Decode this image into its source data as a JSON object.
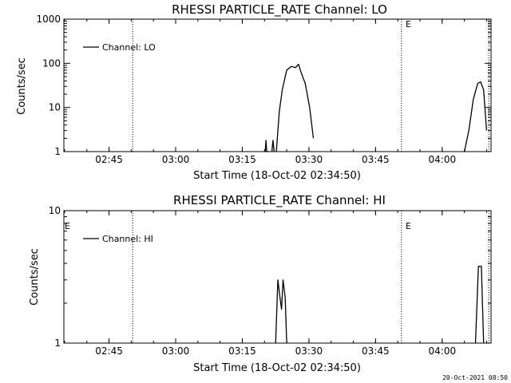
{
  "footer": {
    "timestamp": "20-Oct-2021 08:50"
  },
  "chart_data": [
    {
      "type": "line",
      "title": "RHESSI PARTICLE_RATE Channel: LO",
      "xlabel": "Start Time (18-Oct-02 02:34:50)",
      "ylabel": "Counts/sec",
      "yscale": "log",
      "ylim": [
        1,
        1000
      ],
      "xlim": [
        "02:34:50",
        "04:11:00"
      ],
      "x_ticks": [
        "02:45",
        "03:00",
        "03:15",
        "03:30",
        "03:45",
        "04:00"
      ],
      "y_ticks": [
        "1",
        "10",
        "100",
        "1000"
      ],
      "legend": "Channel: LO",
      "legend_position": "top-left",
      "marker_label": "E",
      "markers": [
        {
          "time": "02:50:20",
          "label": ""
        },
        {
          "time": "03:50:50",
          "label": "E"
        },
        {
          "time": "04:10:30",
          "label": ""
        }
      ],
      "series": [
        {
          "name": "Channel: LO",
          "segments": [
            {
              "x": [
                "03:20:10",
                "03:20:20",
                "03:20:30",
                "03:20:45",
                "03:21:00"
              ],
              "y": [
                1,
                1.8,
                1,
                1,
                1
              ]
            },
            {
              "x": [
                "03:21:40",
                "03:21:55",
                "03:22:10"
              ],
              "y": [
                1,
                1.8,
                1
              ]
            },
            {
              "x": [
                "03:22:40",
                "03:23:20",
                "03:24:00",
                "03:25:00",
                "03:26:00",
                "03:27:00",
                "03:27:40",
                "03:28:10",
                "03:29:10",
                "03:30:10",
                "03:31:00"
              ],
              "y": [
                1,
                8,
                25,
                70,
                85,
                80,
                95,
                65,
                35,
                10,
                2
              ]
            },
            {
              "x": [
                "04:05:00",
                "04:06:00",
                "04:07:00",
                "04:08:00",
                "04:08:40",
                "04:09:20",
                "04:10:00"
              ],
              "y": [
                1,
                3,
                15,
                35,
                38,
                25,
                3
              ]
            }
          ]
        }
      ]
    },
    {
      "type": "line",
      "title": "RHESSI PARTICLE_RATE Channel: HI",
      "xlabel": "Start Time (18-Oct-02 02:34:50)",
      "ylabel": "Counts/sec",
      "yscale": "log",
      "ylim": [
        1,
        10
      ],
      "xlim": [
        "02:34:50",
        "04:11:00"
      ],
      "x_ticks": [
        "02:45",
        "03:00",
        "03:15",
        "03:30",
        "03:45",
        "04:00"
      ],
      "y_ticks": [
        "1",
        "10"
      ],
      "legend": "Channel: HI",
      "legend_position": "top-left",
      "marker_label": "E",
      "markers": [
        {
          "time": "02:50:20",
          "label": ""
        },
        {
          "time": "03:50:50",
          "label": "E"
        },
        {
          "time": "04:10:30",
          "label": ""
        }
      ],
      "series": [
        {
          "name": "Channel: HI",
          "segments": [
            {
              "x": [
                "03:22:30",
                "03:23:00",
                "03:23:30",
                "03:23:50",
                "03:24:10",
                "03:24:40",
                "03:25:00"
              ],
              "y": [
                1,
                3,
                2.2,
                1.8,
                3,
                2.2,
                1
              ]
            },
            {
              "x": [
                "04:07:30",
                "04:08:10",
                "04:08:50",
                "04:09:20"
              ],
              "y": [
                1,
                3.8,
                3.8,
                1
              ]
            }
          ]
        }
      ]
    }
  ]
}
